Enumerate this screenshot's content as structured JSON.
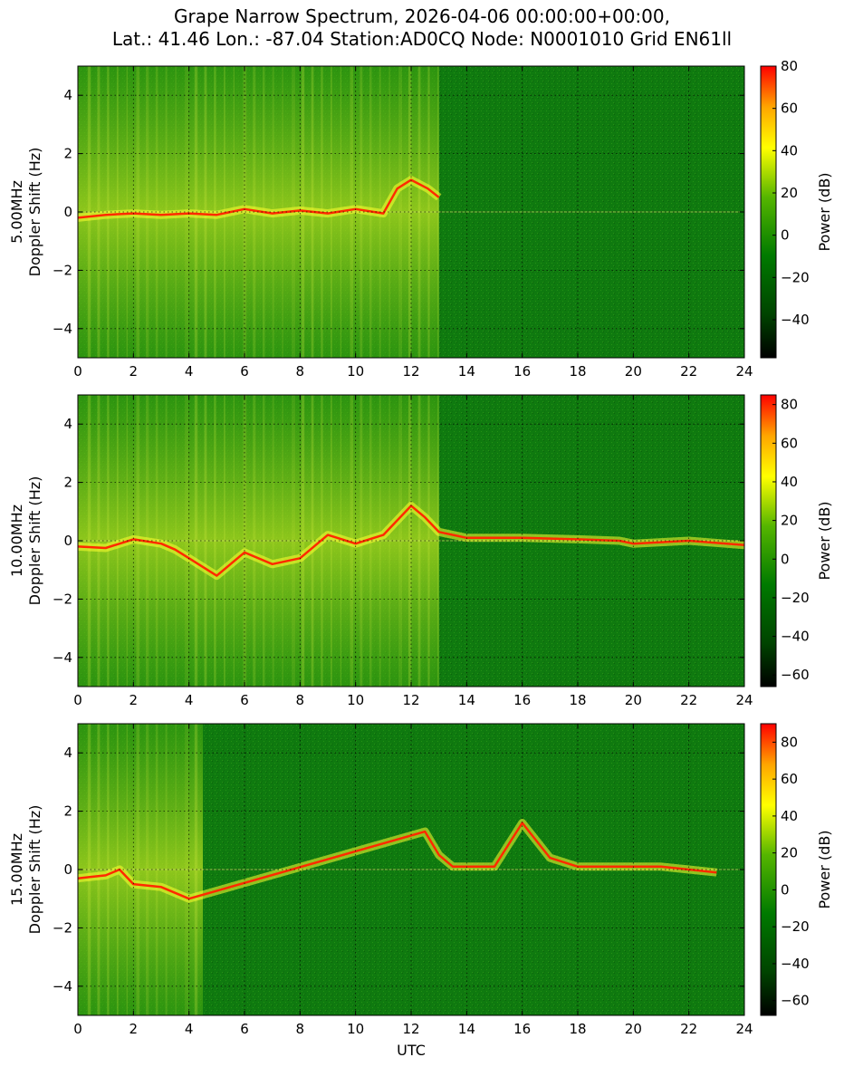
{
  "figure": {
    "title_line1": "Grape Narrow Spectrum, 2026-04-06 00:00:00+00:00,",
    "title_line2": "Lat.: 41.46 Lon.: -87.04 Station:AD0CQ Node: N0001010 Grid EN61ll",
    "xlabel": "UTC",
    "colorbar_label": "Power (dB)",
    "colormap": [
      "#000000",
      "#005200",
      "#008000",
      "#5cb800",
      "#ffff00",
      "#ffa500",
      "#ff0000"
    ]
  },
  "chart_data": [
    {
      "type": "heatmap",
      "panel_label": "5.00MHz",
      "ylabel": "Doppler Shift (Hz)",
      "xlabel": "",
      "x_range": [
        0,
        24
      ],
      "y_range": [
        -5,
        5
      ],
      "x_ticks": [
        "0",
        "2",
        "4",
        "6",
        "8",
        "10",
        "12",
        "14",
        "16",
        "18",
        "20",
        "22",
        "24"
      ],
      "y_ticks": [
        "4",
        "2",
        "0",
        "−2",
        "−4"
      ],
      "y_tick_values": [
        4,
        2,
        0,
        -2,
        -4
      ],
      "colorbar_range": [
        -58,
        80
      ],
      "colorbar_ticks": [
        "80",
        "60",
        "40",
        "20",
        "0",
        "−20",
        "−40"
      ],
      "colorbar_tick_values": [
        80,
        60,
        40,
        20,
        0,
        -20,
        -40
      ],
      "grid": true,
      "carrier_trace": [
        [
          0,
          -0.2
        ],
        [
          1,
          -0.1
        ],
        [
          2,
          -0.05
        ],
        [
          3,
          -0.1
        ],
        [
          4,
          -0.05
        ],
        [
          5,
          -0.1
        ],
        [
          6,
          0.1
        ],
        [
          7,
          -0.05
        ],
        [
          8,
          0.05
        ],
        [
          9,
          -0.05
        ],
        [
          10,
          0.1
        ],
        [
          11,
          -0.05
        ],
        [
          11.5,
          0.8
        ],
        [
          12,
          1.1
        ],
        [
          12.6,
          0.8
        ],
        [
          13,
          0.5
        ]
      ],
      "broadband_hours": [
        0,
        13
      ]
    },
    {
      "type": "heatmap",
      "panel_label": "10.00MHz",
      "ylabel": "Doppler Shift (Hz)",
      "xlabel": "",
      "x_range": [
        0,
        24
      ],
      "y_range": [
        -5,
        5
      ],
      "x_ticks": [
        "0",
        "2",
        "4",
        "6",
        "8",
        "10",
        "12",
        "14",
        "16",
        "18",
        "20",
        "22",
        "24"
      ],
      "y_ticks": [
        "4",
        "2",
        "0",
        "−2",
        "−4"
      ],
      "y_tick_values": [
        4,
        2,
        0,
        -2,
        -4
      ],
      "colorbar_range": [
        -66,
        85
      ],
      "colorbar_ticks": [
        "80",
        "60",
        "40",
        "20",
        "0",
        "−20",
        "−40",
        "−60"
      ],
      "colorbar_tick_values": [
        80,
        60,
        40,
        20,
        0,
        -20,
        -40,
        -60
      ],
      "grid": true,
      "carrier_trace": [
        [
          0,
          -0.2
        ],
        [
          1,
          -0.25
        ],
        [
          2,
          0.05
        ],
        [
          3,
          -0.1
        ],
        [
          3.5,
          -0.3
        ],
        [
          4,
          -0.6
        ],
        [
          5,
          -1.2
        ],
        [
          6,
          -0.4
        ],
        [
          7,
          -0.8
        ],
        [
          8,
          -0.6
        ],
        [
          9,
          0.2
        ],
        [
          10,
          -0.1
        ],
        [
          11,
          0.2
        ],
        [
          12,
          1.2
        ],
        [
          12.5,
          0.8
        ],
        [
          13,
          0.3
        ],
        [
          14,
          0.1
        ],
        [
          16,
          0.1
        ],
        [
          18,
          0.05
        ],
        [
          19.5,
          0.0
        ],
        [
          20,
          -0.1
        ],
        [
          22,
          0.0
        ],
        [
          24,
          -0.15
        ]
      ],
      "broadband_hours": [
        0,
        13
      ]
    },
    {
      "type": "heatmap",
      "panel_label": "15.00MHz",
      "ylabel": "Doppler Shift (Hz)",
      "xlabel": "UTC",
      "x_range": [
        0,
        24
      ],
      "y_range": [
        -5,
        5
      ],
      "x_ticks": [
        "0",
        "2",
        "4",
        "6",
        "8",
        "10",
        "12",
        "14",
        "16",
        "18",
        "20",
        "22",
        "24"
      ],
      "y_ticks": [
        "4",
        "2",
        "0",
        "−2",
        "−4"
      ],
      "y_tick_values": [
        4,
        2,
        0,
        -2,
        -4
      ],
      "colorbar_range": [
        -68,
        90
      ],
      "colorbar_ticks": [
        "80",
        "60",
        "40",
        "20",
        "0",
        "−20",
        "−40",
        "−60"
      ],
      "colorbar_tick_values": [
        80,
        60,
        40,
        20,
        0,
        -20,
        -40,
        -60
      ],
      "grid": true,
      "carrier_trace": [
        [
          0,
          -0.3
        ],
        [
          0.5,
          -0.25
        ],
        [
          1,
          -0.2
        ],
        [
          1.5,
          0.0
        ],
        [
          2,
          -0.5
        ],
        [
          3,
          -0.6
        ],
        [
          4,
          -1.0
        ],
        [
          12.5,
          1.3
        ],
        [
          13,
          0.5
        ],
        [
          13.5,
          0.1
        ],
        [
          15,
          0.1
        ],
        [
          16,
          1.6
        ],
        [
          17,
          0.4
        ],
        [
          18,
          0.1
        ],
        [
          19,
          0.1
        ],
        [
          20,
          0.1
        ],
        [
          21,
          0.1
        ],
        [
          22,
          0.0
        ],
        [
          23,
          -0.1
        ]
      ],
      "broadband_hours": [
        0,
        4.5
      ]
    }
  ]
}
